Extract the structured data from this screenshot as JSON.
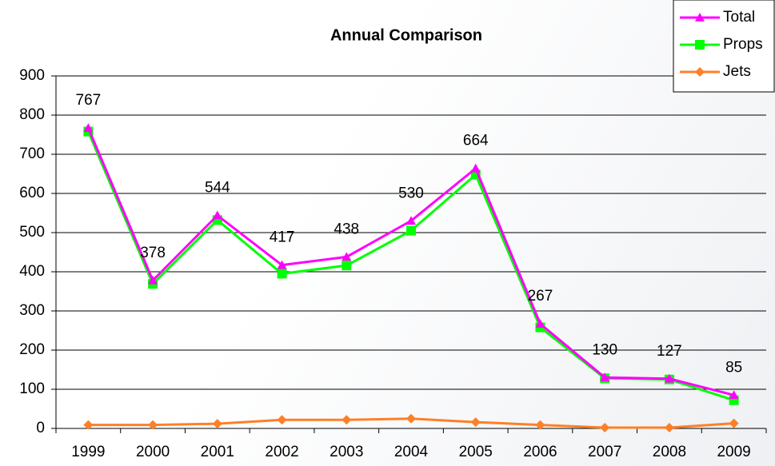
{
  "chart_data": {
    "type": "line",
    "title": "Annual Comparison",
    "categories": [
      "1999",
      "2000",
      "2001",
      "2002",
      "2003",
      "2004",
      "2005",
      "2006",
      "2007",
      "2008",
      "2009"
    ],
    "series": [
      {
        "name": "Total",
        "color": "#ff00ff",
        "marker": "triangle",
        "values": [
          767,
          378,
          544,
          417,
          438,
          530,
          664,
          267,
          130,
          127,
          85
        ],
        "labels": true
      },
      {
        "name": "Props",
        "color": "#00ff00",
        "marker": "square",
        "values": [
          758,
          369,
          532,
          395,
          416,
          505,
          648,
          258,
          128,
          125,
          72
        ]
      },
      {
        "name": "Jets",
        "color": "#ff7f27",
        "marker": "diamond",
        "values": [
          9,
          9,
          12,
          22,
          22,
          25,
          16,
          9,
          2,
          2,
          13
        ]
      }
    ],
    "ylim": [
      0,
      900
    ],
    "yticks": [
      0,
      100,
      200,
      300,
      400,
      500,
      600,
      700,
      800,
      900
    ],
    "grid": true,
    "legend": "top-right"
  }
}
